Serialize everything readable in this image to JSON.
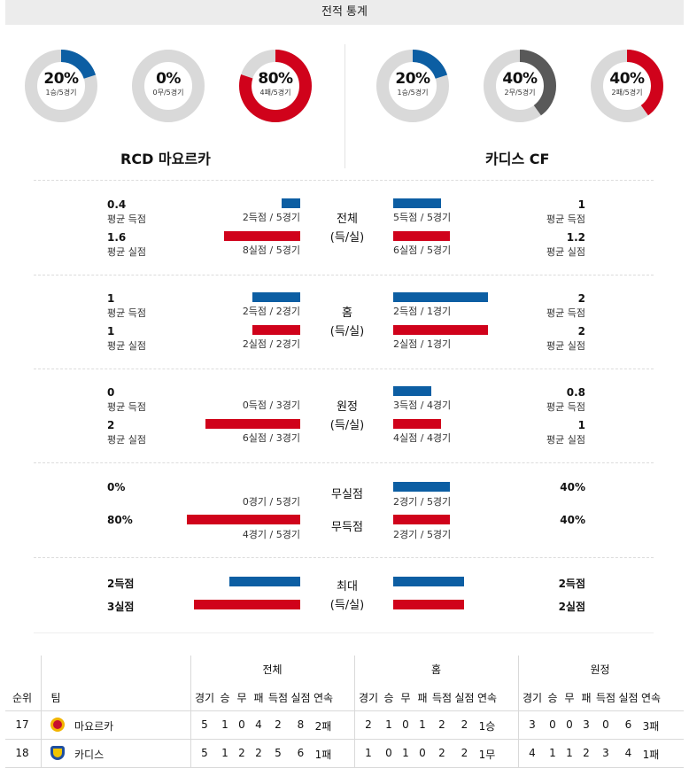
{
  "title": "전적 통계",
  "colors": {
    "blue": "#0c5ea3",
    "red": "#d0021b",
    "gray_dark": "#595959",
    "ring_bg": "#d9d9d9"
  },
  "teams": {
    "home": {
      "name": "RCD 마요르카",
      "donuts": [
        {
          "pct": "20%",
          "sub": "1승/5경기",
          "fraction": 0.2,
          "color": "blue"
        },
        {
          "pct": "0%",
          "sub": "0무/5경기",
          "fraction": 0.0,
          "color": "gray_dark"
        },
        {
          "pct": "80%",
          "sub": "4패/5경기",
          "fraction": 0.8,
          "color": "red"
        }
      ]
    },
    "away": {
      "name": "카디스 CF",
      "donuts": [
        {
          "pct": "20%",
          "sub": "1승/5경기",
          "fraction": 0.2,
          "color": "blue"
        },
        {
          "pct": "40%",
          "sub": "2무/5경기",
          "fraction": 0.4,
          "color": "gray_dark"
        },
        {
          "pct": "40%",
          "sub": "2패/5경기",
          "fraction": 0.4,
          "color": "red"
        }
      ]
    }
  },
  "sections": [
    {
      "category": [
        "전체",
        "(득/실)"
      ],
      "left": [
        {
          "value": "0.4",
          "label": "평균 득점",
          "count": "2득점 / 5경기",
          "bar": 0.4,
          "color": "blue"
        },
        {
          "value": "1.6",
          "label": "평균 실점",
          "count": "8실점 / 5경기",
          "bar": 1.6,
          "color": "red"
        }
      ],
      "right": [
        {
          "value": "1",
          "label": "평균 득점",
          "count": "5득점 / 5경기",
          "bar": 1.0,
          "color": "blue"
        },
        {
          "value": "1.2",
          "label": "평균 실점",
          "count": "6실점 / 5경기",
          "bar": 1.2,
          "color": "red"
        }
      ]
    },
    {
      "category": [
        "홈",
        "(득/실)"
      ],
      "left": [
        {
          "value": "1",
          "label": "평균 득점",
          "count": "2득점 / 2경기",
          "bar": 1.0,
          "color": "blue"
        },
        {
          "value": "1",
          "label": "평균 실점",
          "count": "2실점 / 2경기",
          "bar": 1.0,
          "color": "red"
        }
      ],
      "right": [
        {
          "value": "2",
          "label": "평균 득점",
          "count": "2득점 / 1경기",
          "bar": 2.0,
          "color": "blue"
        },
        {
          "value": "2",
          "label": "평균 실점",
          "count": "2실점 / 1경기",
          "bar": 2.0,
          "color": "red"
        }
      ]
    },
    {
      "category": [
        "원정",
        "(득/실)"
      ],
      "left": [
        {
          "value": "0",
          "label": "평균 득점",
          "count": "0득점 / 3경기",
          "bar": 0.0,
          "color": "blue"
        },
        {
          "value": "2",
          "label": "평균 실점",
          "count": "6실점 / 3경기",
          "bar": 2.0,
          "color": "red"
        }
      ],
      "right": [
        {
          "value": "0.8",
          "label": "평균 득점",
          "count": "3득점 / 4경기",
          "bar": 0.8,
          "color": "blue"
        },
        {
          "value": "1",
          "label": "평균 실점",
          "count": "4실점 / 4경기",
          "bar": 1.0,
          "color": "red"
        }
      ]
    }
  ],
  "clean": {
    "labels": [
      "무실점",
      "무득점"
    ],
    "left": [
      {
        "value": "0%",
        "count": "0경기 / 5경기",
        "bar": 0.0,
        "color": "blue"
      },
      {
        "value": "80%",
        "count": "4경기 / 5경기",
        "bar": 0.8,
        "color": "red"
      }
    ],
    "right": [
      {
        "value": "40%",
        "count": "2경기 / 5경기",
        "bar": 0.4,
        "color": "blue"
      },
      {
        "value": "40%",
        "count": "2경기 / 5경기",
        "bar": 0.4,
        "color": "red"
      }
    ]
  },
  "max": {
    "category": [
      "최대",
      "(득/실)"
    ],
    "left": [
      {
        "value": "2득점",
        "bar": 2,
        "color": "blue"
      },
      {
        "value": "3실점",
        "bar": 3,
        "color": "red"
      }
    ],
    "right": [
      {
        "value": "2득점",
        "bar": 2,
        "color": "blue"
      },
      {
        "value": "2실점",
        "bar": 2,
        "color": "red"
      }
    ]
  },
  "table": {
    "groups": [
      "전체",
      "홈",
      "원정"
    ],
    "col_rank": "순위",
    "col_team": "팀",
    "subcols": [
      "경기",
      "승",
      "무",
      "패",
      "득점",
      "실점",
      "연속"
    ],
    "rows": [
      {
        "rank": "17",
        "team": "마요르카",
        "logo": "mallorca-crest",
        "all": [
          "5",
          "1",
          "0",
          "4",
          "2",
          "8",
          "2패"
        ],
        "home": [
          "2",
          "1",
          "0",
          "1",
          "2",
          "2",
          "1승"
        ],
        "away": [
          "3",
          "0",
          "0",
          "3",
          "0",
          "6",
          "3패"
        ]
      },
      {
        "rank": "18",
        "team": "카디스",
        "logo": "cadiz-crest",
        "all": [
          "5",
          "1",
          "2",
          "2",
          "5",
          "6",
          "1패"
        ],
        "home": [
          "1",
          "0",
          "1",
          "0",
          "2",
          "2",
          "1무"
        ],
        "away": [
          "4",
          "1",
          "1",
          "2",
          "3",
          "4",
          "1패"
        ]
      }
    ]
  }
}
